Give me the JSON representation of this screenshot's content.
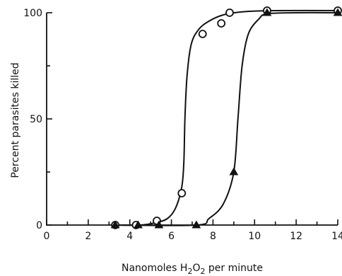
{
  "chart_data": {
    "type": "scatter",
    "title": "",
    "xlabel_parts": [
      "Nanomoles H",
      "2",
      "O",
      "2",
      " per minute"
    ],
    "ylabel": "Percent parasites killed",
    "xlim": [
      0,
      14
    ],
    "ylim": [
      0,
      100
    ],
    "x_ticks": [
      "0",
      "2",
      "4",
      "6",
      "8",
      "10",
      "12",
      "14"
    ],
    "y_ticks": [
      "0",
      "50",
      "100"
    ],
    "x_minor_ticks": [
      1,
      3,
      5,
      7,
      9,
      11,
      13
    ],
    "y_minor_ticks": [
      25,
      75
    ],
    "grid": false,
    "series": [
      {
        "marker": "open-circle",
        "points": [
          [
            3.3,
            0
          ],
          [
            4.3,
            0
          ],
          [
            5.3,
            2
          ],
          [
            6.5,
            15
          ],
          [
            7.5,
            90
          ],
          [
            8.4,
            95
          ],
          [
            8.8,
            100
          ],
          [
            10.6,
            101
          ],
          [
            14.0,
            101
          ]
        ],
        "curve": [
          [
            3.3,
            0
          ],
          [
            4.5,
            0
          ],
          [
            5.2,
            1
          ],
          [
            5.8,
            3
          ],
          [
            6.2,
            8
          ],
          [
            6.5,
            18
          ],
          [
            6.6,
            30
          ],
          [
            6.65,
            50
          ],
          [
            6.75,
            70
          ],
          [
            6.95,
            85
          ],
          [
            7.3,
            92
          ],
          [
            7.8,
            96
          ],
          [
            8.5,
            99
          ],
          [
            9.5,
            100.5
          ],
          [
            11,
            101
          ],
          [
            14,
            101
          ]
        ]
      },
      {
        "marker": "filled-triangle",
        "points": [
          [
            3.3,
            0
          ],
          [
            4.4,
            0
          ],
          [
            5.4,
            0
          ],
          [
            7.2,
            0
          ],
          [
            9.0,
            25
          ],
          [
            10.6,
            100
          ],
          [
            14.0,
            100
          ]
        ],
        "curve": [
          [
            3.3,
            0
          ],
          [
            7.2,
            0
          ],
          [
            7.8,
            3
          ],
          [
            8.5,
            10
          ],
          [
            9.0,
            25
          ],
          [
            9.2,
            50
          ],
          [
            9.4,
            75
          ],
          [
            9.7,
            90
          ],
          [
            10.2,
            97
          ],
          [
            10.6,
            99.5
          ],
          [
            12,
            100
          ],
          [
            14,
            100
          ]
        ]
      }
    ]
  }
}
